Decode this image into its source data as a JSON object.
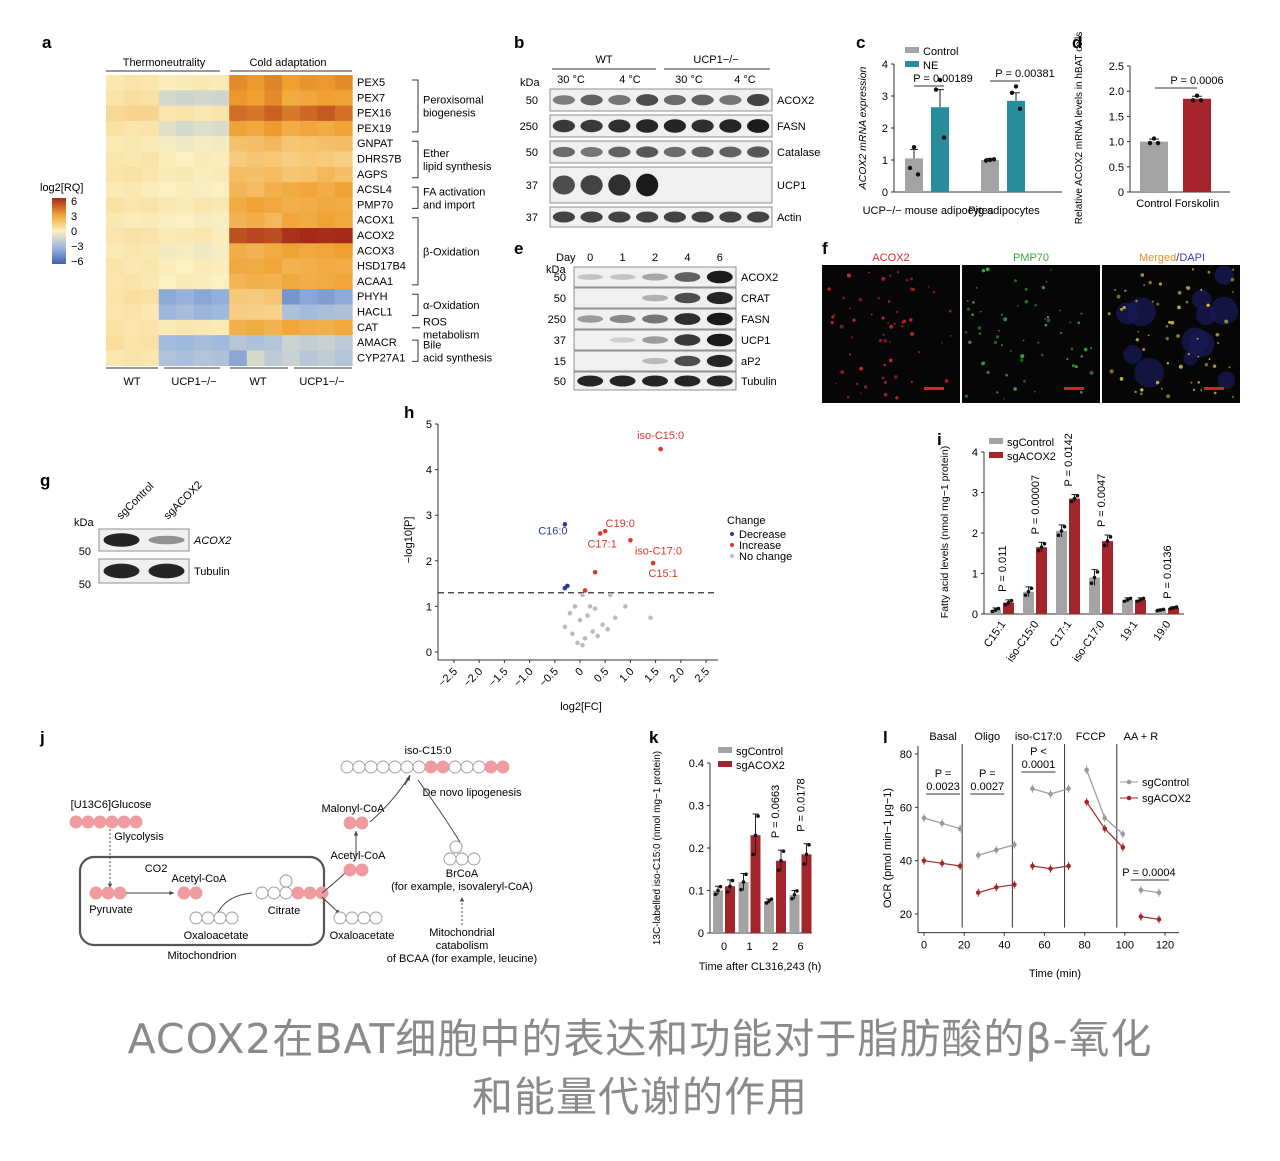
{
  "caption": {
    "line1": "ACOX2在BAT细胞中的表达和功能对于脂肪酸的β-氧化",
    "line2": "和能量代谢的作用"
  },
  "colors": {
    "control_gray": "#a3a3a3",
    "ne_teal": "#2a8d9c",
    "red": "#a3252b",
    "blue": "#2d3a9a",
    "orange": "#e08a2a",
    "pink_circle": "#ef9ba0",
    "heat_low": "#3f62b3",
    "heat_high": "#a52a1a"
  },
  "panel_a": {
    "letter": "a",
    "group_thermo": "Thermoneutrality",
    "group_cold": "Cold adaptation",
    "scale_title": "log2[RQ]",
    "scale_ticks": [
      "6",
      "3",
      "0",
      "−3",
      "−6"
    ],
    "genes": [
      "PEX5",
      "PEX7",
      "PEX16",
      "PEX19",
      "GNPAT",
      "DHRS7B",
      "AGPS",
      "ACSL4",
      "PMP70",
      "ACOX1",
      "ACOX2",
      "ACOX3",
      "HSD17B4",
      "ACAA1",
      "PHYH",
      "HACL1",
      "CAT",
      "AMACR",
      "CYP27A1"
    ],
    "categories": [
      "Peroxisomal biogenesis",
      "Ether lipid synthesis",
      "FA activation and import",
      "β-Oxidation",
      "α-Oxidation",
      "ROS metabolism",
      "Bile acid synthesis"
    ],
    "bottom_labels": [
      "WT",
      "UCP1−/−",
      "WT",
      "UCP1−/−"
    ],
    "matrix": [
      [
        0.3,
        0.5,
        0.4,
        0.1,
        0.2,
        0.3,
        0.2,
        3.5,
        3.2,
        3.7,
        3.0,
        3.3,
        3.2,
        3.5
      ],
      [
        0.5,
        0.7,
        0.6,
        -1.2,
        -1.5,
        -1.3,
        -1.4,
        3.2,
        3.0,
        3.5,
        2.6,
        2.8,
        3.0,
        2.9
      ],
      [
        0.9,
        1.1,
        1.0,
        0.4,
        0.5,
        0.3,
        0.5,
        4.3,
        4.1,
        4.6,
        4.0,
        4.4,
        4.8,
        4.2
      ],
      [
        0.6,
        0.4,
        0.5,
        -0.9,
        -1.2,
        -1.0,
        -1.1,
        2.9,
        2.7,
        3.1,
        2.5,
        2.8,
        2.6,
        2.9
      ],
      [
        0.2,
        0.3,
        0.2,
        -0.2,
        -0.4,
        -0.2,
        -0.3,
        1.8,
        1.9,
        2.1,
        1.6,
        1.7,
        1.8,
        1.9
      ],
      [
        0.4,
        0.3,
        0.5,
        0.1,
        0.0,
        0.2,
        0.1,
        1.4,
        1.6,
        1.5,
        1.3,
        1.5,
        1.4,
        1.2
      ],
      [
        0.5,
        0.6,
        0.4,
        0.2,
        0.3,
        0.1,
        0.2,
        1.9,
        1.8,
        2.0,
        1.6,
        1.7,
        2.1,
        1.8
      ],
      [
        0.2,
        0.3,
        0.1,
        0.0,
        0.1,
        -0.1,
        0.0,
        2.2,
        2.0,
        2.4,
        2.6,
        2.8,
        2.5,
        2.9
      ],
      [
        0.6,
        0.4,
        0.5,
        0.3,
        0.2,
        0.4,
        0.3,
        2.6,
        2.9,
        2.7,
        2.4,
        2.5,
        2.7,
        2.6
      ],
      [
        0.3,
        0.1,
        0.2,
        -0.1,
        0.0,
        -0.2,
        -0.1,
        2.3,
        2.5,
        2.1,
        2.8,
        2.6,
        2.9,
        2.7
      ],
      [
        0.4,
        0.6,
        0.5,
        0.2,
        0.3,
        0.4,
        0.1,
        5.0,
        5.3,
        5.1,
        5.8,
        6.0,
        5.9,
        6.1
      ],
      [
        0.2,
        0.4,
        0.3,
        -0.3,
        -0.2,
        -0.4,
        -0.2,
        2.5,
        2.3,
        2.6,
        2.9,
        2.7,
        2.8,
        3.0
      ],
      [
        0.5,
        0.3,
        0.4,
        0.1,
        0.0,
        0.2,
        0.1,
        2.7,
        2.6,
        2.8,
        2.3,
        2.4,
        2.6,
        2.5
      ],
      [
        0.4,
        0.5,
        0.3,
        0.0,
        0.2,
        0.1,
        0.0,
        2.2,
        2.4,
        2.3,
        2.7,
        2.5,
        2.6,
        2.8
      ],
      [
        0.5,
        0.7,
        0.6,
        -3.5,
        -3.2,
        -3.6,
        -3.3,
        1.5,
        1.4,
        1.6,
        -4.2,
        -3.6,
        -3.9,
        -3.4
      ],
      [
        0.4,
        0.5,
        0.3,
        -3.0,
        -2.7,
        -3.1,
        -2.9,
        1.3,
        1.2,
        1.1,
        -2.5,
        -2.8,
        -2.6,
        -2.4
      ],
      [
        0.6,
        0.4,
        0.5,
        0.2,
        0.4,
        0.3,
        0.2,
        2.4,
        2.6,
        2.3,
        2.8,
        2.5,
        2.4,
        2.7
      ],
      [
        0.7,
        0.5,
        0.6,
        -2.8,
        -3.0,
        -2.7,
        -2.9,
        -2.2,
        -2.5,
        -2.3,
        -1.5,
        -1.8,
        -1.6,
        -2.0
      ],
      [
        0.3,
        0.5,
        0.4,
        -2.4,
        -2.6,
        -2.3,
        -2.5,
        -3.6,
        -1.2,
        -2.0,
        -1.6,
        -2.2,
        -1.9,
        -2.3
      ]
    ]
  },
  "panel_b": {
    "letter": "b",
    "kda": "kDa",
    "groups": [
      "WT",
      "UCP1−/−"
    ],
    "temps": [
      "30 °C",
      "4 °C",
      "30 °C",
      "4 °C"
    ],
    "bands": [
      {
        "mw": "50",
        "label": "ACOX2",
        "intensity": [
          0.45,
          0.6,
          0.5,
          0.7,
          0.55,
          0.6,
          0.5,
          0.75
        ]
      },
      {
        "mw": "250",
        "label": "FASN",
        "intensity": [
          0.8,
          0.8,
          0.85,
          0.9,
          0.9,
          0.85,
          0.9,
          0.95
        ]
      },
      {
        "mw": "50",
        "label": "Catalase",
        "intensity": [
          0.55,
          0.5,
          0.6,
          0.65,
          0.55,
          0.6,
          0.6,
          0.65
        ]
      },
      {
        "mw": "37",
        "label": "UCP1",
        "intensity": [
          0.7,
          0.75,
          0.85,
          0.95,
          0,
          0,
          0,
          0
        ]
      },
      {
        "mw": "37",
        "label": "Actin",
        "intensity": [
          0.75,
          0.75,
          0.75,
          0.75,
          0.75,
          0.75,
          0.75,
          0.75
        ]
      }
    ]
  },
  "panel_c": {
    "letter": "c",
    "ylabel": "ACOX2 mRNA expression",
    "legend": [
      "Control",
      "NE"
    ],
    "groups": [
      "UCP−/− mouse adipocytes",
      "Pig adipocytes"
    ],
    "pvalues": [
      "P = 0.00189",
      "P = 0.00381"
    ],
    "yticks": [
      "0",
      "1",
      "2",
      "3",
      "4"
    ]
  },
  "panel_d": {
    "letter": "d",
    "ylabel": "Relative ACOX2 mRNA levels in hBAT cells",
    "categories": [
      "Control",
      "Forskolin"
    ],
    "pvalue": "P = 0.0006",
    "yticks": [
      "0",
      "0.5",
      "1.0",
      "1.5",
      "2.0",
      "2.5"
    ]
  },
  "panel_e": {
    "letter": "e",
    "day_label": "Day",
    "days": [
      "0",
      "1",
      "2",
      "4",
      "6"
    ],
    "kda": "kDa",
    "bands": [
      {
        "mw": "50",
        "label": "ACOX2",
        "intensity": [
          0.1,
          0.1,
          0.25,
          0.6,
          0.95
        ]
      },
      {
        "mw": "50",
        "label": "CRAT",
        "intensity": [
          0,
          0,
          0.2,
          0.7,
          0.9
        ]
      },
      {
        "mw": "250",
        "label": "FASN",
        "intensity": [
          0.3,
          0.4,
          0.5,
          0.85,
          0.95
        ]
      },
      {
        "mw": "37",
        "label": "UCP1",
        "intensity": [
          0,
          0.05,
          0.3,
          0.8,
          0.95
        ]
      },
      {
        "mw": "15",
        "label": "aP2",
        "intensity": [
          0,
          0,
          0.15,
          0.7,
          0.9
        ]
      },
      {
        "mw": "50",
        "label": "Tubulin",
        "intensity": [
          0.9,
          0.9,
          0.9,
          0.9,
          0.9
        ]
      }
    ]
  },
  "panel_f": {
    "letter": "f",
    "titles": [
      "ACOX2",
      "PMP70"
    ],
    "merged": "Merged",
    "dapi": "DAPI",
    "sep": "/"
  },
  "panel_g": {
    "letter": "g",
    "lanes": [
      "sgControl",
      "sgACOX2"
    ],
    "kda": "kDa",
    "bands": [
      {
        "mw": "50",
        "label": "ACOX2",
        "intensity": [
          0.9,
          0.35
        ]
      },
      {
        "mw": "50",
        "label": "Tubulin",
        "intensity": [
          0.9,
          0.9
        ]
      }
    ]
  },
  "panel_h": {
    "letter": "h",
    "xlabel": "log2[FC]",
    "ylabel": "−log10[P]",
    "xticks": [
      "−2.5",
      "−2.0",
      "−1.5",
      "−1.0",
      "−0.5",
      "0",
      "0.5",
      "1.0",
      "1.5",
      "2.0",
      "2.5"
    ],
    "yticks": [
      "0",
      "1",
      "2",
      "3",
      "4",
      "5"
    ],
    "legend_title": "Change",
    "legend": [
      "Decrease",
      "Increase",
      "No change"
    ],
    "labels": [
      "iso-C15:0",
      "C16:0",
      "C19:0",
      "C17:1",
      "iso-C17:0",
      "C15:1"
    ]
  },
  "panel_i": {
    "letter": "i",
    "ylabel": "Fatty acid levels (nmol mg−1 protein)",
    "legend": [
      "sgControl",
      "sgACOX2"
    ],
    "categories": [
      "C15:1",
      "iso-C15:0",
      "C17:1",
      "iso-C17:0",
      "19:1",
      "19:0"
    ],
    "pvalues": [
      "P = 0.011",
      "P = 0.00007",
      "P = 0.0142",
      "P = 0.0047",
      "",
      "P = 0.0136"
    ],
    "yticks": [
      "0",
      "1",
      "2",
      "3",
      "4"
    ]
  },
  "panel_j": {
    "letter": "j",
    "glucose": "[U13C6]Glucose",
    "glycolysis": "Glycolysis",
    "pyruvate": "Pyruvate",
    "co2": "CO2",
    "acetyl_inner": "Acetyl-CoA",
    "oxaloacetate_inner": "Oxaloacetate",
    "citrate": "Citrate",
    "mitochondrion": "Mitochondrion",
    "oxaloacetate_out": "Oxaloacetate",
    "acetyl_out": "Acetyl-CoA",
    "malonyl": "Malonyl-CoA",
    "isoc15": "iso-C15:0",
    "dnl": "De novo lipogenesis",
    "brcoa": "BrCoA",
    "brcoa_sub": "(for example, isovaleryl-CoA)",
    "mito_cat": "Mitochondrial catabolism of BCAA (for example, leucine)"
  },
  "panel_k": {
    "letter": "k",
    "ylabel": "13C-labelled iso-C15:0 (nmol mg−1 protein)",
    "legend": [
      "sgControl",
      "sgACOX2"
    ],
    "categories": [
      "0",
      "1",
      "2",
      "6"
    ],
    "pvalues": [
      "",
      "",
      "P = 0.0663",
      "P = 0.0178"
    ],
    "xlabel": "Time after CL316,243 (h)",
    "yticks": [
      "0",
      "0.1",
      "0.2",
      "0.3",
      "0.4"
    ]
  },
  "panel_l": {
    "letter": "l",
    "phases": [
      "Basal",
      "Oligo",
      "iso-C17:0",
      "FCCP",
      "AA + R"
    ],
    "pvalues": [
      "P = 0.0023",
      "P = 0.0027",
      "P < 0.0001",
      "P = 0.0004"
    ],
    "ylabel": "OCR (pmol min−1 μg−1)",
    "xlabel": "Time (min)",
    "legend": [
      "sgControl",
      "sgACOX2"
    ],
    "xticks": [
      "0",
      "20",
      "40",
      "60",
      "80",
      "100",
      "120"
    ],
    "yticks": [
      "20",
      "40",
      "60",
      "80"
    ]
  },
  "chart_data": [
    {
      "type": "bar",
      "panel": "c",
      "categories": [
        "UCP−/− mouse adipocytes",
        "Pig adipocytes"
      ],
      "series": [
        {
          "name": "Control",
          "values": [
            1.05,
            1.0
          ],
          "err": [
            0.28,
            0.05
          ],
          "points": [
            [
              0.75,
              1.4,
              0.55
            ],
            [
              0.98,
              1.0,
              1.02
            ]
          ]
        },
        {
          "name": "NE",
          "values": [
            2.65,
            2.85
          ],
          "err": [
            0.55,
            0.25
          ],
          "points": [
            [
              3.2,
              3.5,
              1.7
            ],
            [
              3.1,
              3.3,
              2.6
            ]
          ]
        }
      ],
      "ylim": [
        0,
        4
      ]
    },
    {
      "type": "bar",
      "panel": "d",
      "categories": [
        "Control",
        "Forskolin"
      ],
      "values": [
        1.0,
        1.85
      ],
      "err": [
        0.05,
        0.05
      ],
      "ylim": [
        0,
        2.5
      ]
    },
    {
      "type": "scatter",
      "panel": "h",
      "x": [
        1.6,
        -0.3,
        0.5,
        0.4,
        1.0,
        1.45,
        0.3,
        0.1,
        -0.25,
        -0.3,
        0.05,
        0.6,
        0.9,
        -0.1,
        0.2,
        0.3,
        -0.2,
        0.15,
        0.7,
        0.0,
        0.45,
        -0.3,
        0.25,
        -0.15,
        0.35,
        0.1,
        1.4,
        0.05,
        0.55,
        -0.05
      ],
      "y": [
        4.45,
        2.8,
        2.65,
        2.6,
        2.45,
        1.95,
        1.75,
        1.35,
        1.45,
        1.4,
        1.25,
        1.25,
        1.0,
        1.0,
        1.0,
        0.95,
        0.85,
        0.8,
        0.75,
        0.7,
        0.6,
        0.55,
        0.45,
        0.4,
        0.35,
        0.3,
        0.75,
        0.15,
        0.5,
        0.2
      ],
      "change": [
        "up",
        "down",
        "up",
        "up",
        "up",
        "up",
        "up",
        "up",
        "down",
        "down",
        "none",
        "none",
        "none",
        "none",
        "none",
        "none",
        "none",
        "none",
        "none",
        "none",
        "none",
        "none",
        "none",
        "none",
        "none",
        "none",
        "none",
        "none",
        "none",
        "none"
      ],
      "threshold": 1.3,
      "xlim": [
        -2.5,
        2.5
      ],
      "ylim": [
        0,
        5
      ]
    },
    {
      "type": "bar",
      "panel": "i",
      "categories": [
        "C15:1",
        "iso-C15:0",
        "C17:1",
        "iso-C17:0",
        "19:1",
        "19:0"
      ],
      "series": [
        {
          "name": "sgControl",
          "values": [
            0.1,
            0.55,
            2.05,
            0.9,
            0.35,
            0.1
          ],
          "err": [
            0.05,
            0.12,
            0.15,
            0.2,
            0.05,
            0.02
          ]
        },
        {
          "name": "sgACOX2",
          "values": [
            0.28,
            1.65,
            2.85,
            1.8,
            0.35,
            0.15
          ],
          "err": [
            0.07,
            0.12,
            0.1,
            0.15,
            0.05,
            0.03
          ]
        }
      ],
      "ylim": [
        0,
        4
      ]
    },
    {
      "type": "bar",
      "panel": "k",
      "categories": [
        "0",
        "1",
        "2",
        "6"
      ],
      "series": [
        {
          "name": "sgControl",
          "values": [
            0.1,
            0.12,
            0.075,
            0.09
          ],
          "err": [
            0.01,
            0.02,
            0.005,
            0.01
          ]
        },
        {
          "name": "sgACOX2",
          "values": [
            0.11,
            0.23,
            0.17,
            0.185
          ],
          "err": [
            0.015,
            0.05,
            0.025,
            0.025
          ]
        }
      ],
      "ylim": [
        0,
        0.4
      ]
    },
    {
      "type": "line",
      "panel": "l",
      "x": [
        0,
        9,
        18,
        27,
        36,
        45,
        54,
        63,
        72,
        81,
        90,
        99,
        108,
        117
      ],
      "series": [
        {
          "name": "sgControl",
          "values": [
            56,
            54,
            52,
            42,
            44,
            46,
            67,
            65,
            67,
            74,
            56,
            50,
            29,
            28
          ]
        },
        {
          "name": "sgACOX2",
          "values": [
            40,
            39,
            38,
            28,
            30,
            31,
            38,
            37,
            38,
            62,
            52,
            45,
            19,
            18
          ]
        }
      ],
      "xlim": [
        -3,
        127
      ],
      "ylim": [
        13,
        83
      ]
    }
  ]
}
